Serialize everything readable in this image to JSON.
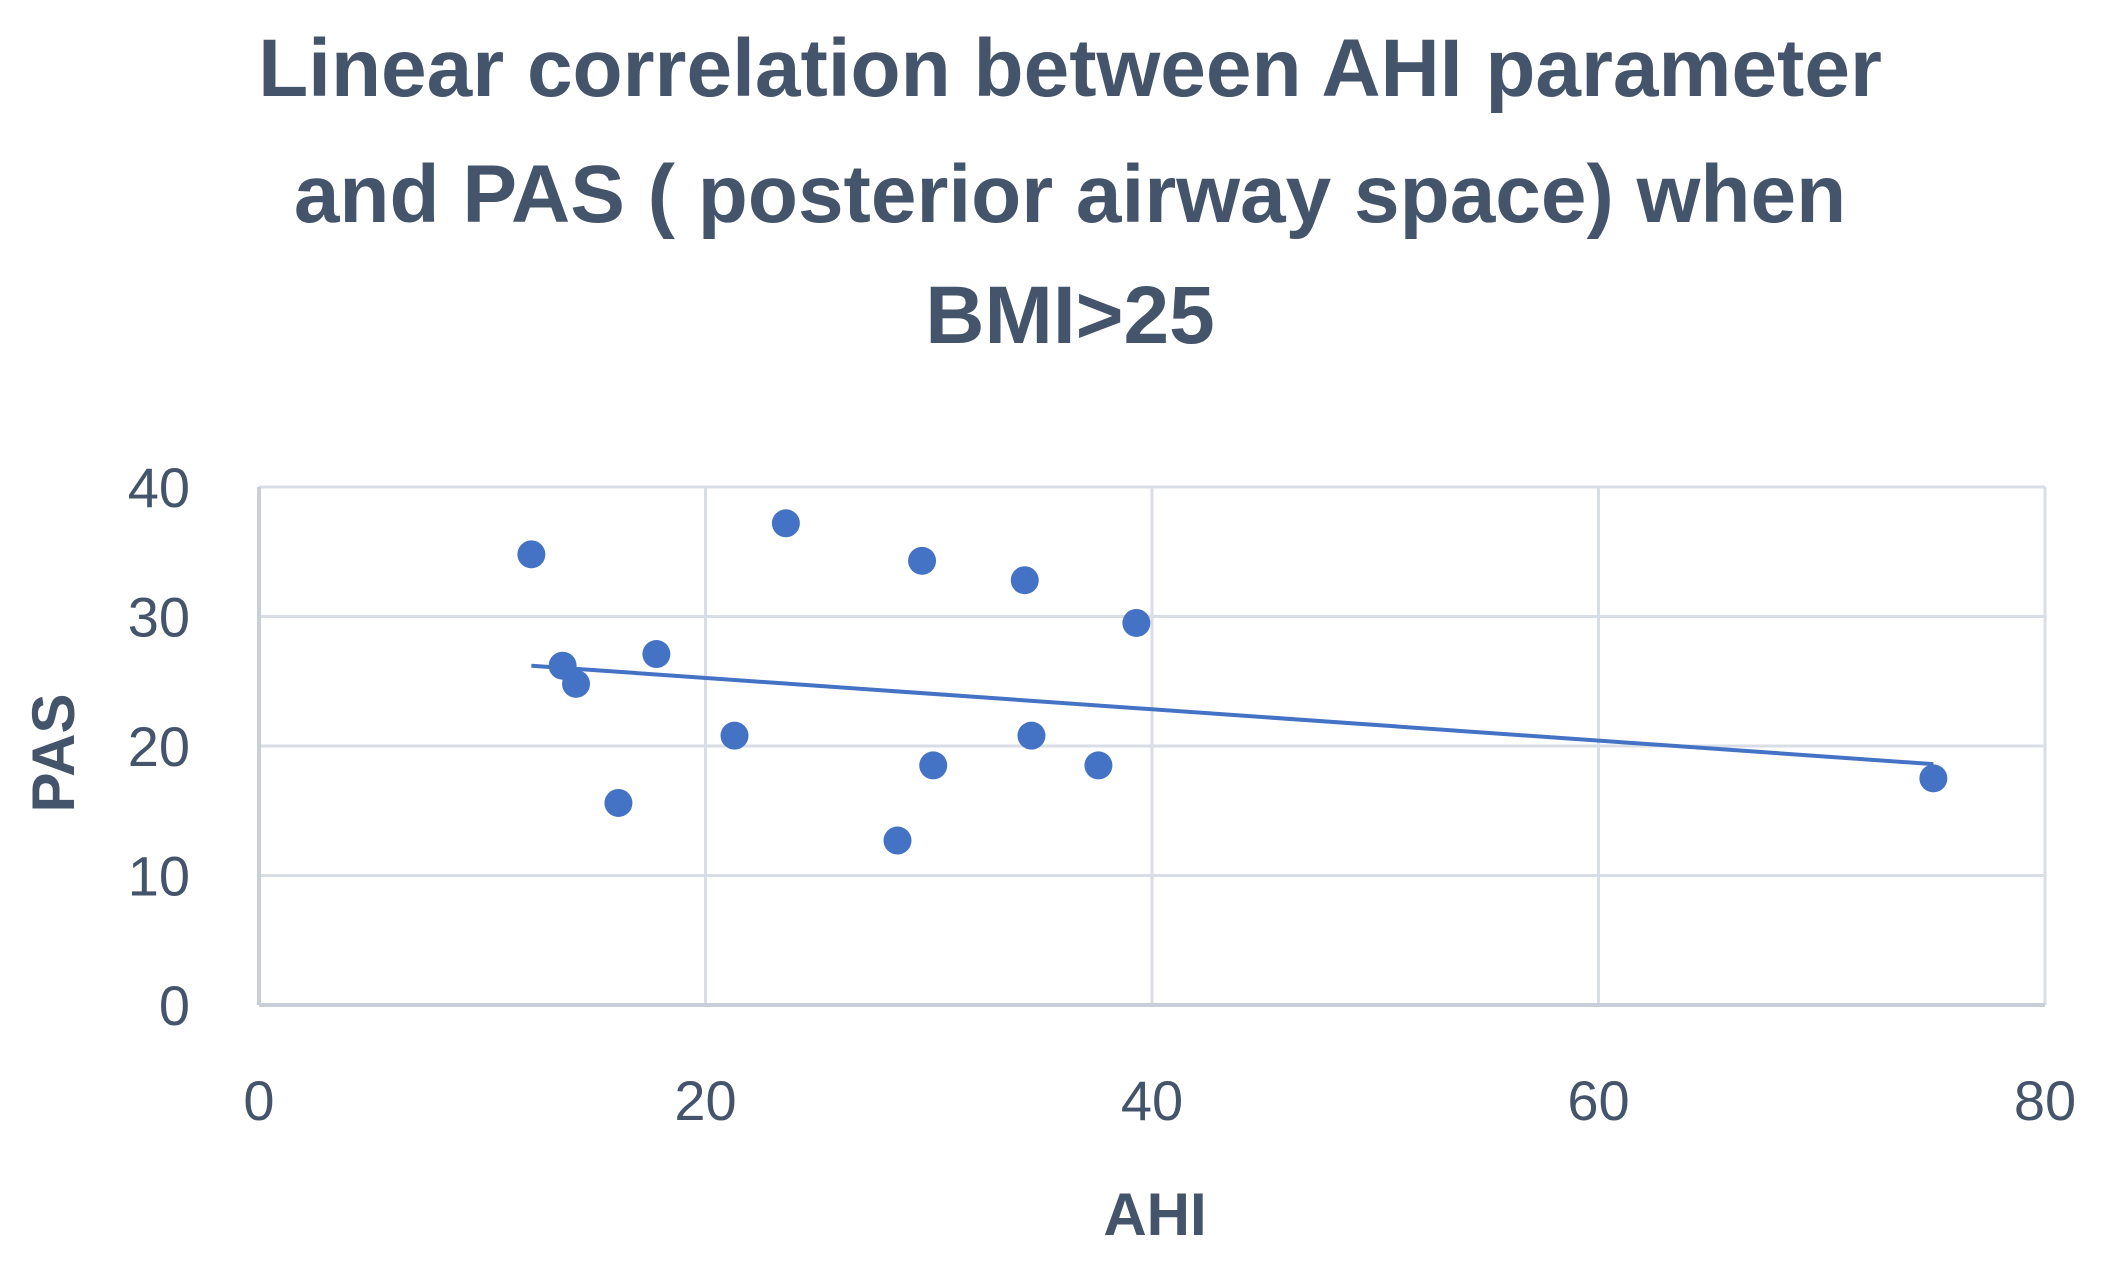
{
  "chart_data": {
    "type": "scatter",
    "title_lines": [
      "Linear correlation between AHI parameter",
      "and PAS ( posterior airway space) when",
      "BMI>25"
    ],
    "xlabel": "AHI",
    "ylabel": "PAS",
    "xlim": [
      0,
      80
    ],
    "ylim": [
      0,
      40
    ],
    "x_ticks": [
      "0",
      "20",
      "40",
      "60",
      "80"
    ],
    "y_ticks": [
      "0",
      "10",
      "20",
      "30",
      "40"
    ],
    "grid": true,
    "legend": "none",
    "colors": {
      "marker": "#4472c4",
      "trendline": "#4472c4",
      "text": "#44546a"
    },
    "series": [
      {
        "x": [
          12.2,
          13.6,
          14.2,
          16.1,
          17.8,
          21.3,
          23.6,
          28.6,
          29.7,
          30.2,
          34.3,
          34.6,
          37.6,
          39.3,
          75.0
        ],
        "y": [
          34.8,
          26.2,
          24.8,
          15.6,
          27.1,
          20.8,
          37.2,
          12.7,
          34.3,
          18.5,
          32.8,
          20.8,
          18.5,
          29.5,
          17.5
        ]
      }
    ],
    "trendline": {
      "type": "linear",
      "x": [
        12.2,
        75.0
      ],
      "y": [
        26.2,
        18.6
      ]
    }
  }
}
